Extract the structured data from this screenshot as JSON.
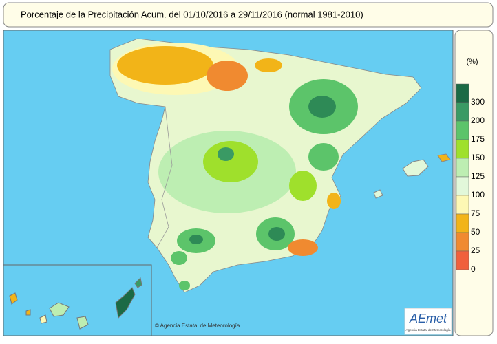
{
  "header": {
    "title": "Porcentaje de la Precipitación Acum. del 01/10/2016 a  29/11/2016  (normal 1981-2010)"
  },
  "legend": {
    "unit": "(%)",
    "colors": [
      "#1b6a45",
      "#3a9a64",
      "#5cc46a",
      "#9fe02c",
      "#bdeeb2",
      "#e2f8da",
      "#fdf8b4",
      "#f2b418",
      "#f08a30",
      "#f0603c"
    ],
    "labels": [
      "300",
      "200",
      "175",
      "150",
      "125",
      "100",
      "75",
      "50",
      "25",
      "0"
    ]
  },
  "credit": "© Agencia Estatal de Meteorología",
  "logo": {
    "name": "AEmet",
    "subtitle": "Agencia Estatal de Meteorología"
  }
}
